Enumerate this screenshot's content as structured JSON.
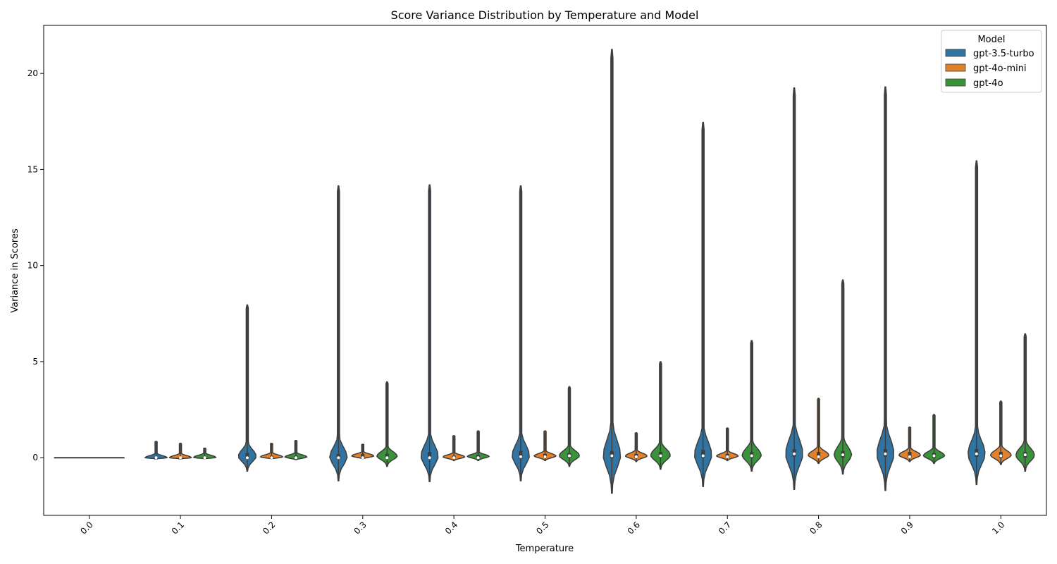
{
  "chart_data": {
    "type": "violin",
    "title": "Score Variance Distribution by Temperature and Model",
    "xlabel": "Temperature",
    "ylabel": "Variance in Scores",
    "categories": [
      "0.0",
      "0.1",
      "0.2",
      "0.3",
      "0.4",
      "0.5",
      "0.6",
      "0.7",
      "0.8",
      "0.9",
      "1.0"
    ],
    "ylim": [
      -3.0,
      22.5
    ],
    "yticks": [
      0,
      5,
      10,
      15,
      20
    ],
    "legend": {
      "title": "Model",
      "placement": "top-right",
      "entries": [
        "gpt-3.5-turbo",
        "gpt-4o-mini",
        "gpt-4o"
      ]
    },
    "series": [
      {
        "name": "gpt-3.5-turbo",
        "color": "#3274a1",
        "violins": [
          {
            "min": 0,
            "max": 0,
            "median": 0,
            "q1": 0,
            "q3": 0,
            "flat": true
          },
          {
            "min": -0.05,
            "max": 0.85,
            "median": 0,
            "q1": 0,
            "q3": 0.02
          },
          {
            "min": -0.7,
            "max": 7.95,
            "median": 0,
            "q1": -0.05,
            "q3": 0.25
          },
          {
            "min": -1.2,
            "max": 14.15,
            "median": 0,
            "q1": -0.05,
            "q3": 0.2
          },
          {
            "min": -1.25,
            "max": 14.2,
            "median": 0,
            "q1": -0.05,
            "q3": 0.3
          },
          {
            "min": -1.2,
            "max": 14.15,
            "median": 0.05,
            "q1": -0.05,
            "q3": 0.35
          },
          {
            "min": -1.85,
            "max": 21.25,
            "median": 0.1,
            "q1": 0,
            "q3": 0.35
          },
          {
            "min": -1.5,
            "max": 17.45,
            "median": 0.1,
            "q1": 0,
            "q3": 0.4
          },
          {
            "min": -1.65,
            "max": 19.25,
            "median": 0.2,
            "q1": 0.05,
            "q3": 0.45
          },
          {
            "min": -1.7,
            "max": 19.3,
            "median": 0.2,
            "q1": 0.05,
            "q3": 0.45
          },
          {
            "min": -1.4,
            "max": 15.45,
            "median": 0.2,
            "q1": 0.05,
            "q3": 0.45
          }
        ]
      },
      {
        "name": "gpt-4o-mini",
        "color": "#e1812c",
        "violins": [
          {
            "min": 0,
            "max": 0,
            "median": 0,
            "q1": 0,
            "q3": 0,
            "flat": true
          },
          {
            "min": -0.05,
            "max": 0.75,
            "median": 0,
            "q1": 0,
            "q3": 0.02
          },
          {
            "min": -0.05,
            "max": 0.75,
            "median": 0,
            "q1": 0,
            "q3": 0.1
          },
          {
            "min": -0.05,
            "max": 0.7,
            "median": 0,
            "q1": 0,
            "q3": 0.2
          },
          {
            "min": -0.15,
            "max": 1.15,
            "median": 0,
            "q1": 0,
            "q3": 0.1
          },
          {
            "min": -0.15,
            "max": 1.4,
            "median": 0.05,
            "q1": 0,
            "q3": 0.2
          },
          {
            "min": -0.2,
            "max": 1.3,
            "median": 0.05,
            "q1": 0,
            "q3": 0.2
          },
          {
            "min": -0.15,
            "max": 1.55,
            "median": 0.05,
            "q1": 0,
            "q3": 0.2
          },
          {
            "min": -0.3,
            "max": 3.1,
            "median": 0.05,
            "q1": 0,
            "q3": 0.3
          },
          {
            "min": -0.2,
            "max": 1.6,
            "median": 0.05,
            "q1": 0,
            "q3": 0.3
          },
          {
            "min": -0.35,
            "max": 2.95,
            "median": 0.1,
            "q1": 0,
            "q3": 0.3
          }
        ]
      },
      {
        "name": "gpt-4o",
        "color": "#3a923a",
        "violins": [
          {
            "min": 0,
            "max": 0,
            "median": 0,
            "q1": 0,
            "q3": 0,
            "flat": true
          },
          {
            "min": -0.05,
            "max": 0.5,
            "median": 0,
            "q1": 0,
            "q3": 0.05
          },
          {
            "min": -0.1,
            "max": 0.9,
            "median": 0,
            "q1": 0,
            "q3": 0.1
          },
          {
            "min": -0.45,
            "max": 3.95,
            "median": 0,
            "q1": 0,
            "q3": 0.2
          },
          {
            "min": -0.15,
            "max": 1.4,
            "median": 0,
            "q1": 0,
            "q3": 0.15
          },
          {
            "min": -0.45,
            "max": 3.7,
            "median": 0.1,
            "q1": 0,
            "q3": 0.25
          },
          {
            "min": -0.6,
            "max": 5.0,
            "median": 0.1,
            "q1": 0,
            "q3": 0.3
          },
          {
            "min": -0.7,
            "max": 6.1,
            "median": 0.1,
            "q1": 0,
            "q3": 0.3
          },
          {
            "min": -0.85,
            "max": 9.25,
            "median": 0.15,
            "q1": 0,
            "q3": 0.35
          },
          {
            "min": -0.3,
            "max": 2.25,
            "median": 0.1,
            "q1": 0,
            "q3": 0.25
          },
          {
            "min": -0.7,
            "max": 6.45,
            "median": 0.15,
            "q1": 0,
            "q3": 0.3
          }
        ]
      }
    ]
  }
}
